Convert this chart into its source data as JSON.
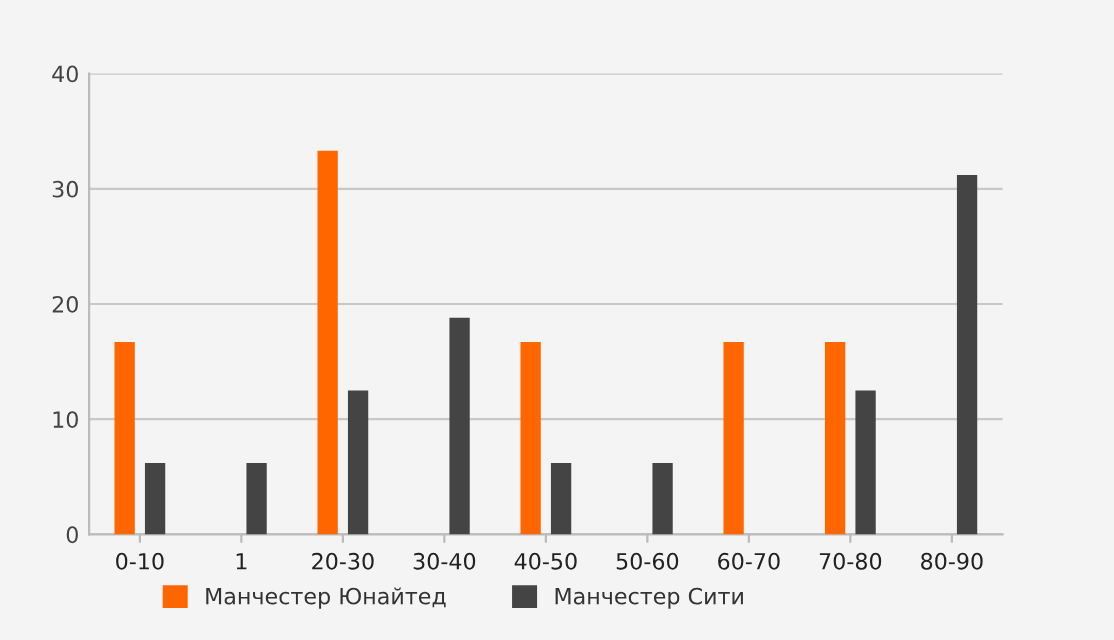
{
  "chart_data": {
    "type": "bar",
    "categories": [
      "0-10",
      "1",
      "20-30",
      "30-40",
      "40-50",
      "50-60",
      "60-70",
      "70-80",
      "80-90"
    ],
    "series": [
      {
        "name": "Манчестер Юнайтед",
        "color": "#ff6600",
        "values": [
          16.7,
          null,
          33.3,
          null,
          16.7,
          null,
          16.7,
          16.7,
          null
        ]
      },
      {
        "name": "Манчестер Сити",
        "color": "#444444",
        "values": [
          6.2,
          6.2,
          12.5,
          18.8,
          6.2,
          6.2,
          null,
          12.5,
          31.2
        ]
      }
    ],
    "ylim": [
      0,
      40
    ],
    "yticks": [
      0,
      10,
      20,
      30,
      40
    ],
    "grid": "y",
    "legend": "bottom"
  }
}
